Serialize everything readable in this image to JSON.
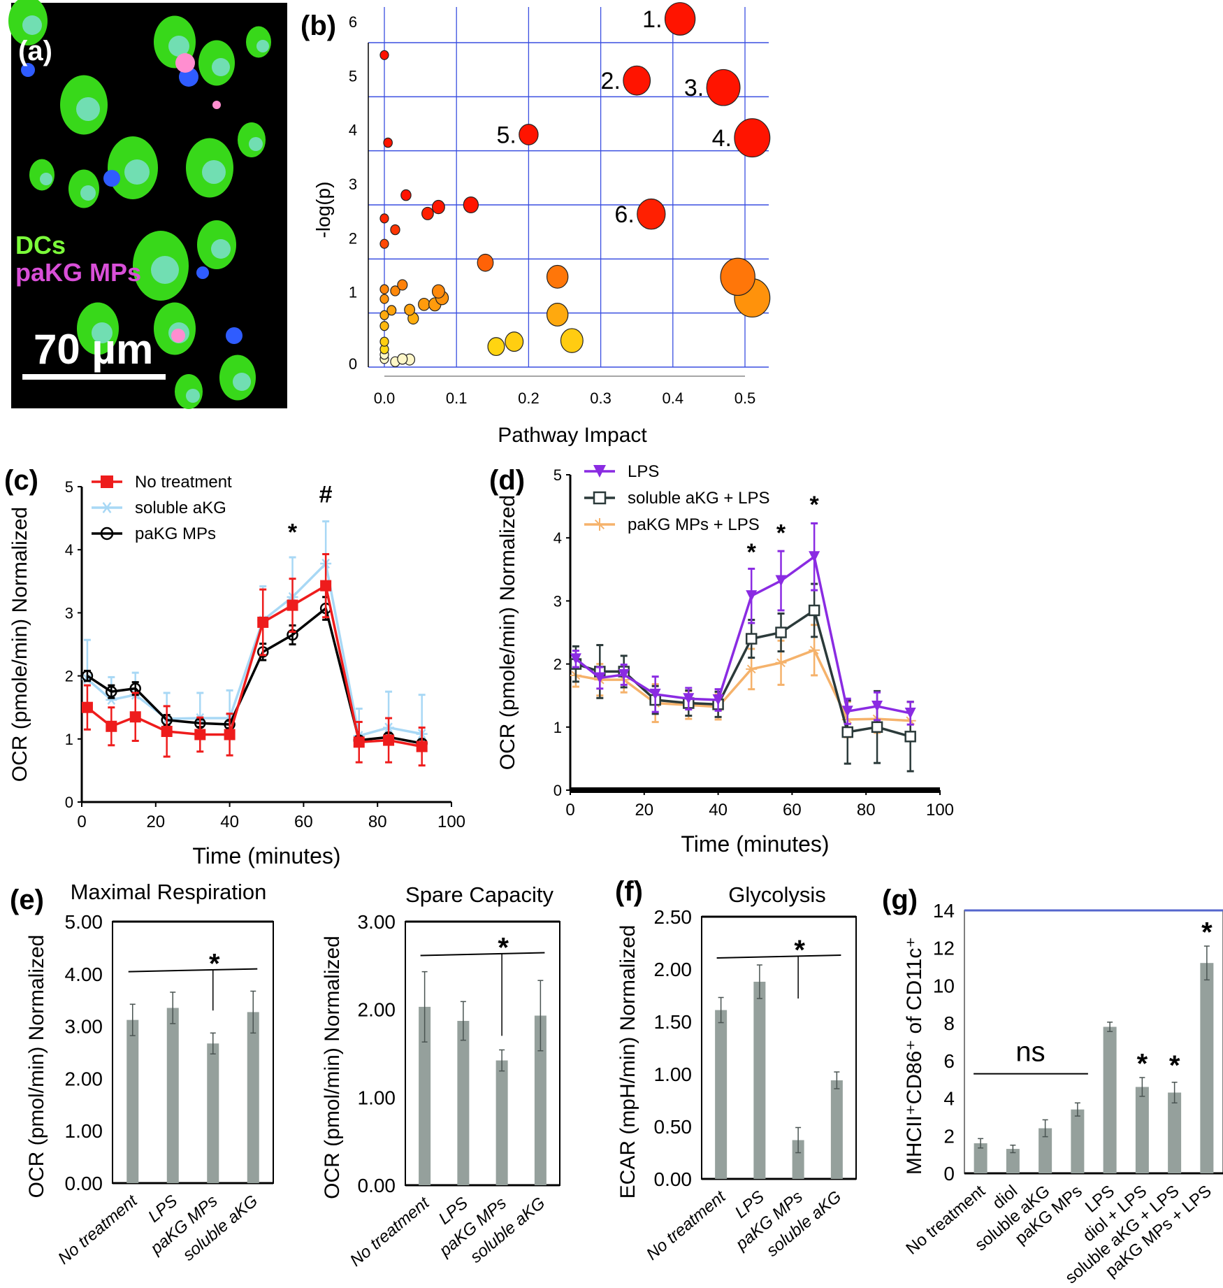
{
  "panel_a": {
    "label": "(a)",
    "legend": [
      {
        "text": "DCs",
        "color": "#7cff3a"
      },
      {
        "text": "paKG MPs",
        "color": "#d94fd8"
      }
    ],
    "scale_bar": "70 µm"
  },
  "chart_data": [
    {
      "id": "b",
      "panel_label": "(b)",
      "type": "scatter",
      "xlabel": "Pathway Impact",
      "ylabel": "-log(p)",
      "xlim": [
        0,
        0.5
      ],
      "ylim": [
        0,
        6
      ],
      "xticks": [
        "0.0",
        "0.1",
        "0.2",
        "0.3",
        "0.4",
        "0.5"
      ],
      "yticks": [
        "0",
        "1",
        "2",
        "3",
        "4",
        "5",
        "6"
      ],
      "grid": true,
      "grid_color": "#3a4fe0",
      "points": [
        {
          "x": 0.41,
          "y": 6.44,
          "label": "1."
        },
        {
          "x": 0.35,
          "y": 5.3,
          "label": "2."
        },
        {
          "x": 0.47,
          "y": 5.17,
          "label": "3."
        },
        {
          "x": 0.51,
          "y": 4.24,
          "label": "4."
        },
        {
          "x": 0.2,
          "y": 4.3,
          "label": "5."
        },
        {
          "x": 0.37,
          "y": 2.83,
          "label": "6."
        },
        {
          "x": 0.0,
          "y": 5.77
        },
        {
          "x": 0.005,
          "y": 4.15
        },
        {
          "x": 0.03,
          "y": 3.18
        },
        {
          "x": 0.075,
          "y": 2.96
        },
        {
          "x": 0.06,
          "y": 2.84
        },
        {
          "x": 0.12,
          "y": 3.0
        },
        {
          "x": 0.0,
          "y": 2.75
        },
        {
          "x": 0.015,
          "y": 2.54
        },
        {
          "x": 0.0,
          "y": 2.28
        },
        {
          "x": 0.14,
          "y": 1.93
        },
        {
          "x": 0.24,
          "y": 1.67
        },
        {
          "x": 0.49,
          "y": 1.67
        },
        {
          "x": 0.51,
          "y": 1.28
        },
        {
          "x": 0.025,
          "y": 1.52
        },
        {
          "x": 0.015,
          "y": 1.41
        },
        {
          "x": 0.0,
          "y": 1.44
        },
        {
          "x": 0.0,
          "y": 1.26
        },
        {
          "x": 0.075,
          "y": 1.4
        },
        {
          "x": 0.08,
          "y": 1.28
        },
        {
          "x": 0.055,
          "y": 1.16
        },
        {
          "x": 0.07,
          "y": 1.16
        },
        {
          "x": 0.24,
          "y": 0.97
        },
        {
          "x": 0.035,
          "y": 1.06
        },
        {
          "x": 0.04,
          "y": 0.9
        },
        {
          "x": 0.01,
          "y": 1.05
        },
        {
          "x": 0.0,
          "y": 0.96
        },
        {
          "x": 0.0,
          "y": 0.76
        },
        {
          "x": 0.155,
          "y": 0.38
        },
        {
          "x": 0.18,
          "y": 0.47
        },
        {
          "x": 0.26,
          "y": 0.49
        },
        {
          "x": 0.0,
          "y": 0.47
        },
        {
          "x": 0.0,
          "y": 0.33
        },
        {
          "x": 0.0,
          "y": 0.23
        },
        {
          "x": 0.0,
          "y": 0.15
        },
        {
          "x": 0.015,
          "y": 0.1
        },
        {
          "x": 0.025,
          "y": 0.15
        },
        {
          "x": 0.035,
          "y": 0.14
        }
      ]
    },
    {
      "id": "c",
      "panel_label": "(c)",
      "type": "line",
      "xlabel": "Time (minutes)",
      "ylabel": "OCR (pmole/min) Normalized",
      "xlim": [
        0,
        100
      ],
      "ylim": [
        0,
        5
      ],
      "xticks": [
        "0",
        "20",
        "40",
        "60",
        "80",
        "100"
      ],
      "yticks": [
        "0",
        "1",
        "2",
        "3",
        "4",
        "5"
      ],
      "legend": "top-left",
      "x": [
        1.5,
        8,
        14.5,
        23,
        32,
        40,
        49,
        57,
        66,
        75,
        83,
        92
      ],
      "series": [
        {
          "name": "soluble aKG",
          "color": "#a8d8f5",
          "marker": "x",
          "errbar": "up",
          "values": [
            1.95,
            1.62,
            1.7,
            1.32,
            1.33,
            1.33,
            2.88,
            3.25,
            3.78,
            1.05,
            1.18,
            1.08
          ],
          "errors": [
            0.62,
            0.36,
            0.35,
            0.41,
            0.4,
            0.44,
            0.54,
            0.63,
            0.67,
            0.43,
            0.57,
            0.62
          ]
        },
        {
          "name": "paKG MPs",
          "color": "#000000",
          "marker": "circle",
          "errbar": "both",
          "values": [
            2.0,
            1.75,
            1.8,
            1.3,
            1.25,
            1.23,
            2.38,
            2.65,
            3.07,
            0.98,
            1.03,
            0.93
          ],
          "errors": [
            0.08,
            0.1,
            0.1,
            0.08,
            0.06,
            0.06,
            0.13,
            0.15,
            0.18,
            0.06,
            0.06,
            0.06
          ]
        },
        {
          "name": "No treatment",
          "color": "#ee1c1c",
          "marker": "square",
          "errbar": "both",
          "values": [
            1.5,
            1.2,
            1.35,
            1.12,
            1.07,
            1.07,
            2.85,
            3.12,
            3.43,
            0.95,
            0.98,
            0.88
          ],
          "errors": [
            0.35,
            0.3,
            0.38,
            0.4,
            0.27,
            0.33,
            0.52,
            0.42,
            0.5,
            0.32,
            0.35,
            0.3
          ]
        }
      ],
      "legend_order": [
        2,
        0,
        1
      ],
      "annotations": [
        {
          "x": 57,
          "y": 4.15,
          "text": "*"
        },
        {
          "x": 66,
          "y": 4.75,
          "text": "#"
        }
      ]
    },
    {
      "id": "d",
      "panel_label": "(d)",
      "type": "line",
      "xlabel": "Time (minutes)",
      "ylabel": "OCR (pmole/min) Normalized",
      "xlim": [
        0,
        100
      ],
      "ylim": [
        0,
        5
      ],
      "xticks": [
        "0",
        "20",
        "40",
        "60",
        "80",
        "100"
      ],
      "yticks": [
        "0",
        "1",
        "2",
        "3",
        "4",
        "5"
      ],
      "legend": "top-left",
      "x": [
        1.5,
        8,
        14.5,
        23,
        32,
        40,
        49,
        57,
        66,
        75,
        83,
        92
      ],
      "series": [
        {
          "name": "paKG MPs + LPS",
          "color": "#f5b26b",
          "marker": "star",
          "errbar": "both",
          "values": [
            1.82,
            1.75,
            1.75,
            1.38,
            1.35,
            1.32,
            1.92,
            2.02,
            2.22,
            1.12,
            1.13,
            1.1
          ],
          "errors": [
            0.18,
            0.25,
            0.2,
            0.3,
            0.22,
            0.2,
            0.32,
            0.35,
            0.4,
            0.28,
            0.22,
            0.3
          ]
        },
        {
          "name": "soluble aKG + LPS",
          "color": "#2b3a3a",
          "marker": "open-square",
          "errbar": "both",
          "values": [
            2.0,
            1.88,
            1.88,
            1.43,
            1.38,
            1.36,
            2.4,
            2.5,
            2.85,
            0.92,
            1.0,
            0.85
          ],
          "errors": [
            0.28,
            0.42,
            0.25,
            0.22,
            0.2,
            0.2,
            0.3,
            0.3,
            0.42,
            0.5,
            0.57,
            0.55
          ]
        },
        {
          "name": "LPS",
          "color": "#8a2be2",
          "marker": "triangle-down",
          "errbar": "both",
          "values": [
            2.08,
            1.78,
            1.83,
            1.52,
            1.45,
            1.43,
            3.08,
            3.32,
            3.7,
            1.25,
            1.33,
            1.22
          ],
          "errors": [
            0.13,
            0.17,
            0.16,
            0.28,
            0.17,
            0.17,
            0.43,
            0.47,
            0.53,
            0.2,
            0.22,
            0.18
          ]
        }
      ],
      "legend_order": [
        2,
        1,
        0
      ],
      "annotations": [
        {
          "x": 49,
          "y": 3.65,
          "text": "*"
        },
        {
          "x": 57,
          "y": 3.95,
          "text": "*"
        },
        {
          "x": 66,
          "y": 4.4,
          "text": "*"
        }
      ]
    },
    {
      "id": "e1",
      "panel_label": "(e)",
      "type": "bar",
      "title": "Maximal Respiration",
      "ylabel": "OCR (pmol/min) Normalized",
      "ylim": [
        0,
        5
      ],
      "yticks": [
        "0.00",
        "1.00",
        "2.00",
        "3.00",
        "4.00",
        "5.00"
      ],
      "categories": [
        "No treatment",
        "LPS",
        "paKG MPs",
        "soluble aKG"
      ],
      "values": [
        3.12,
        3.35,
        2.67,
        3.27
      ],
      "errors": [
        0.3,
        0.3,
        0.2,
        0.4
      ],
      "bar_color": "#95a09c",
      "significance": [
        {
          "type": "bracket",
          "from": 0,
          "to": 3,
          "y": 4.07,
          "drop_at": 2,
          "drop_to": 3.3,
          "text": "*"
        }
      ]
    },
    {
      "id": "e2",
      "panel_label": "",
      "type": "bar",
      "title": "Spare Capacity",
      "ylabel": "OCR (pmol/min) Normalized",
      "ylim": [
        0,
        3
      ],
      "yticks": [
        "0.00",
        "1.00",
        "2.00",
        "3.00"
      ],
      "categories": [
        "No treatment",
        "LPS",
        "paKG MPs",
        "soluble aKG"
      ],
      "values": [
        2.03,
        1.87,
        1.42,
        1.93
      ],
      "errors": [
        0.4,
        0.22,
        0.12,
        0.4
      ],
      "bar_color": "#95a09c",
      "significance": [
        {
          "type": "bracket",
          "from": 0,
          "to": 3,
          "y": 2.63,
          "drop_at": 2,
          "drop_to": 1.7,
          "text": "*"
        }
      ]
    },
    {
      "id": "f",
      "panel_label": "(f)",
      "type": "bar",
      "title": "Glycolysis",
      "ylabel": "ECAR (mpH/min) Normalized",
      "ylim": [
        0,
        2.5
      ],
      "yticks": [
        "0.00",
        "0.50",
        "1.00",
        "1.50",
        "2.00",
        "2.50"
      ],
      "categories": [
        "No treatment",
        "LPS",
        "paKG MPs",
        "soluble aKG"
      ],
      "values": [
        1.61,
        1.88,
        0.37,
        0.94
      ],
      "errors": [
        0.12,
        0.16,
        0.12,
        0.08
      ],
      "bar_color": "#95a09c",
      "significance": [
        {
          "type": "bracket",
          "from": 0,
          "to": 3,
          "y": 2.12,
          "drop_at": 2,
          "drop_to": 1.72,
          "text": "*"
        }
      ]
    },
    {
      "id": "g",
      "panel_label": "(g)",
      "type": "bar",
      "title": "",
      "ylabel": "MHCII⁺CD86⁺ of CD11c⁺",
      "ylim": [
        0,
        14
      ],
      "yticks": [
        "0",
        "2",
        "4",
        "6",
        "8",
        "10",
        "12",
        "14"
      ],
      "categories": [
        "No treatment",
        "diol",
        "soluble aKG",
        "paKG MPs",
        "LPS",
        "diol + LPS",
        "soluble aKG + LPS",
        "paKG MPs + LPS"
      ],
      "values": [
        1.6,
        1.3,
        2.4,
        3.4,
        7.8,
        4.6,
        4.3,
        11.2
      ],
      "errors": [
        0.25,
        0.2,
        0.45,
        0.35,
        0.25,
        0.5,
        0.55,
        0.9
      ],
      "bar_color": "#95a09c",
      "significance": [
        {
          "type": "line",
          "from": 0,
          "to": 3,
          "y": 5.3,
          "text": "ns"
        },
        {
          "type": "star",
          "at": 5,
          "y": 5.5,
          "text": "*"
        },
        {
          "type": "star",
          "at": 6,
          "y": 5.4,
          "text": "*"
        },
        {
          "type": "star",
          "at": 7,
          "y": 12.5,
          "text": "*"
        }
      ]
    }
  ]
}
